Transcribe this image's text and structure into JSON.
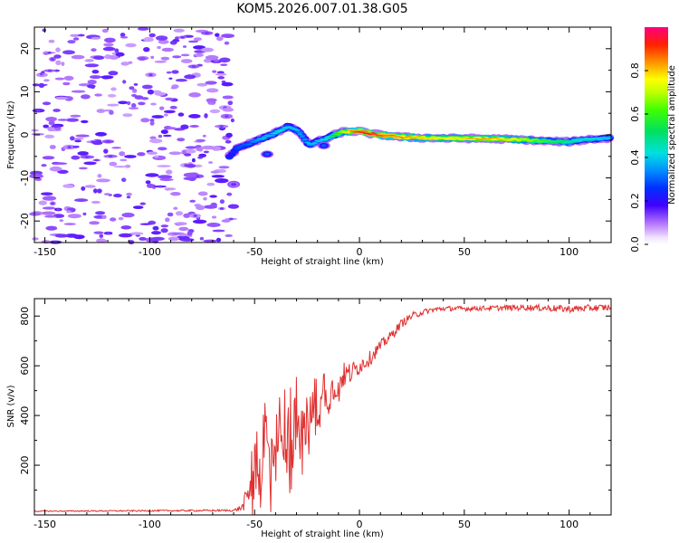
{
  "chart_data": [
    {
      "type": "heatmap",
      "title": "KOM5.2026.007.01.38.G05",
      "xlabel": "Height of straight line (km)",
      "ylabel": "Frequency (Hz)",
      "xlim": [
        -155,
        120
      ],
      "ylim": [
        -25,
        25
      ],
      "xticks": [
        -150,
        -100,
        -50,
        0,
        50,
        100
      ],
      "yticks": [
        -20,
        -10,
        0,
        10,
        20
      ],
      "colorbar": {
        "label": "Normalized spectral amplitude",
        "range": [
          0.0,
          1.0
        ],
        "ticks": [
          0.0,
          0.2,
          0.4,
          0.6,
          0.8
        ],
        "tick_labels": [
          "0.0",
          "0.2",
          "0.4",
          "0.6",
          "0.8"
        ],
        "colormap": "rainbow"
      },
      "noise_region": {
        "x_range": [
          -155,
          -60
        ],
        "level": 0.08
      },
      "ridge": {
        "x": [
          -62,
          -58,
          -54,
          -50,
          -46,
          -42,
          -38,
          -34,
          -30,
          -27,
          -24,
          -20,
          -16,
          -12,
          -8,
          -4,
          0,
          5,
          10,
          20,
          30,
          40,
          50,
          60,
          70,
          80,
          90,
          100,
          110,
          120
        ],
        "f": [
          -5,
          -3,
          -2.3,
          -1.5,
          -0.8,
          0,
          1,
          2,
          1.2,
          -0.5,
          -2.3,
          -1.5,
          -1.0,
          0,
          0.7,
          0.8,
          0.8,
          0.3,
          0,
          -0.5,
          -0.7,
          -0.8,
          -0.8,
          -0.9,
          -1,
          -1.2,
          -1.5,
          -1.6,
          -1,
          -0.8
        ],
        "amp": [
          0.2,
          0.3,
          0.3,
          0.35,
          0.4,
          0.4,
          0.45,
          0.4,
          0.4,
          0.35,
          0.4,
          0.4,
          0.45,
          0.55,
          0.7,
          0.85,
          0.95,
          0.95,
          0.9,
          0.85,
          0.8,
          0.75,
          0.8,
          0.85,
          0.8,
          0.7,
          0.6,
          0.5,
          0.45,
          0.4
        ]
      },
      "blobs": [
        {
          "x": -44,
          "f": -4.5,
          "amp": 0.3
        },
        {
          "x": -60,
          "f": -11.5,
          "amp": 0.15
        },
        {
          "x": -17,
          "f": -2.5,
          "amp": 0.3
        }
      ]
    },
    {
      "type": "line",
      "xlabel": "Height of straight line (km)",
      "ylabel": "SNR (v/v)",
      "xlim": [
        -155,
        120
      ],
      "ylim": [
        0,
        870
      ],
      "xticks": [
        -150,
        -100,
        -50,
        0,
        50,
        100
      ],
      "yticks": [
        200,
        400,
        600,
        800
      ],
      "series": [
        {
          "name": "SNR",
          "color": "#e03030",
          "x": [
            -155,
            -60,
            -56,
            -53,
            -50,
            -47,
            -45,
            -43,
            -41,
            -39,
            -36,
            -33,
            -30,
            -27,
            -24,
            -20,
            -16,
            -12,
            -8,
            -4,
            0,
            5,
            10,
            15,
            20,
            25,
            30,
            35,
            40,
            50,
            60,
            70,
            80,
            90,
            100,
            110,
            120
          ],
          "y": [
            15,
            18,
            30,
            80,
            170,
            150,
            360,
            200,
            330,
            250,
            280,
            300,
            360,
            330,
            400,
            420,
            460,
            520,
            560,
            570,
            600,
            630,
            680,
            720,
            770,
            800,
            815,
            825,
            830,
            830,
            832,
            833,
            835,
            832,
            828,
            832,
            835
          ],
          "noise": [
            2,
            4,
            15,
            60,
            120,
            130,
            200,
            160,
            180,
            150,
            160,
            150,
            140,
            120,
            110,
            90,
            80,
            70,
            55,
            45,
            35,
            30,
            25,
            20,
            18,
            15,
            12,
            12,
            10,
            10,
            10,
            12,
            12,
            14,
            14,
            14,
            14
          ]
        }
      ]
    }
  ]
}
